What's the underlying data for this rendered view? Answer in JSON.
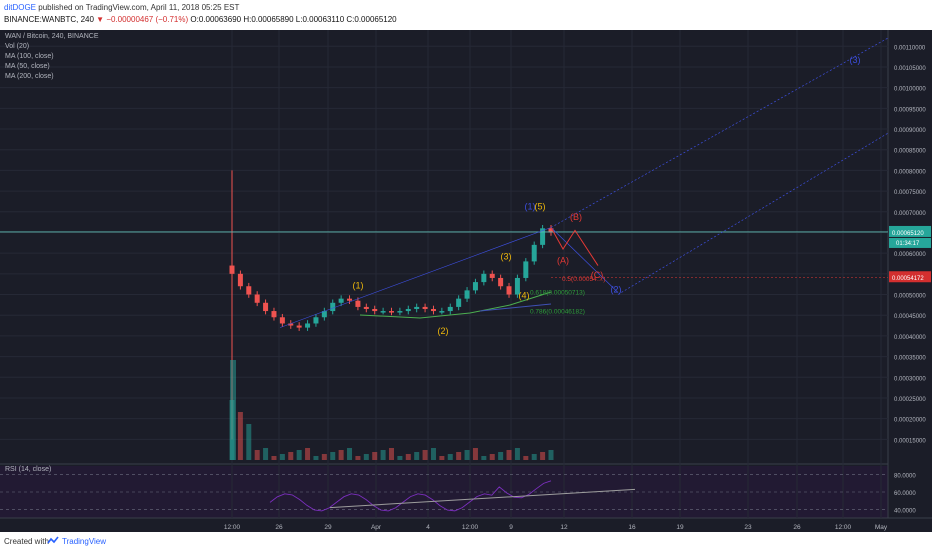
{
  "header": {
    "author": "ditDOGE",
    "published": " published on TradingView.com, April 11, 2018 05:25 EST",
    "symbol_line_prefix": "BINANCE:WANBTC, 240 ",
    "change": "▼ −0.00000467 (−0.71%)",
    "ohlc": " O:0.00063690 H:0.00065890 L:0.00063110 C:0.00065120"
  },
  "legend": {
    "title": "WAN / Bitcoin, 240, BINANCE",
    "items": [
      "Vol (20)",
      "MA (100, close)",
      "MA (50, close)",
      "MA (200, close)"
    ],
    "rsi": "RSI (14, close)"
  },
  "footer": {
    "created_with": "Created with",
    "brand": "TradingView"
  },
  "colors": {
    "background": "#1b1d28",
    "up": "#26a69a",
    "down": "#ef5350",
    "wave_yellow": "#f0b90b",
    "wave_blue": "#3d4fe0",
    "wave_red": "#e53935",
    "fib_green": "#2e9d3a",
    "rsi": "#7b2fbe"
  },
  "chart_data": {
    "type": "candlestick",
    "symbol": "BINANCE:WANBTC",
    "interval": "240",
    "ylim": [
      0.0001,
      0.00112
    ],
    "y_ticks": [
      0.0011,
      0.00105,
      0.001,
      0.00095,
      0.0009,
      0.00085,
      0.0008,
      0.00075,
      0.0007,
      0.00065,
      0.0006,
      0.00055,
      0.0005,
      0.00045,
      0.0004,
      0.00035,
      0.0003,
      0.00025,
      0.0002,
      0.00015
    ],
    "x_ticks": [
      "12:00",
      "26",
      "29",
      "Apr",
      "4",
      "12:00",
      "9",
      "12",
      "16",
      "19",
      "23",
      "26",
      "12:00",
      "May"
    ],
    "last_price": 0.0006512,
    "last_price_label": "0.00065120",
    "countdown": "01:34:17",
    "red_level": 0.00054172,
    "red_level_label": "0.00054172",
    "series": [
      {
        "name": "WAN / Bitcoin",
        "close": [
          0.00055,
          0.00052,
          0.0005,
          0.00048,
          0.00046,
          0.000445,
          0.00043,
          0.000425,
          0.00042,
          0.00043,
          0.000445,
          0.00046,
          0.00048,
          0.00049,
          0.000485,
          0.00047,
          0.000465,
          0.00046,
          0.00046,
          0.000458,
          0.00046,
          0.000465,
          0.00047,
          0.000465,
          0.00046,
          0.00046,
          0.00047,
          0.00049,
          0.00051,
          0.00053,
          0.00055,
          0.00054,
          0.00052,
          0.0005,
          0.00054,
          0.00058,
          0.00062,
          0.00066,
          0.00065
        ]
      }
    ],
    "rsi_ticks": [
      "80.0000",
      "60.0000",
      "40.0000"
    ],
    "wave_labels": [
      {
        "text": "(1)",
        "color": "yellow",
        "x": "Mar 30",
        "y": 0.000495
      },
      {
        "text": "(2)",
        "color": "yellow",
        "x": "Apr 3",
        "y": 0.00041
      },
      {
        "text": "(3)",
        "color": "yellow",
        "x": "Apr 8",
        "y": 0.000575
      },
      {
        "text": "(4)",
        "color": "yellow",
        "x": "Apr 9",
        "y": 0.00049
      },
      {
        "text": "(5)",
        "color": "yellow",
        "x": "Apr 10",
        "y": 0.000695
      },
      {
        "text": "(1)",
        "color": "blue",
        "x": "Apr 10",
        "y": 0.000695
      },
      {
        "text": "(2)",
        "color": "blue",
        "x": "Apr 14",
        "y": 0.000505
      },
      {
        "text": "(3)",
        "color": "blue",
        "x": "Apr 30",
        "y": 0.00105
      },
      {
        "text": "(A)",
        "color": "red",
        "x": "Apr 10",
        "y": 0.00058
      },
      {
        "text": "(B)",
        "color": "red",
        "x": "Apr 12",
        "y": 0.00067
      },
      {
        "text": "(C)",
        "color": "red",
        "x": "Apr 13",
        "y": 0.000535
      }
    ],
    "fib_labels": [
      {
        "text": "0.618(0.00050713)",
        "color": "green",
        "value": 0.00050713
      },
      {
        "text": "0.786(0.00046182)",
        "color": "green",
        "value": 0.00046182
      },
      {
        "text": "0.5(0.00054…)",
        "color": "red",
        "value": 0.00054
      }
    ]
  }
}
